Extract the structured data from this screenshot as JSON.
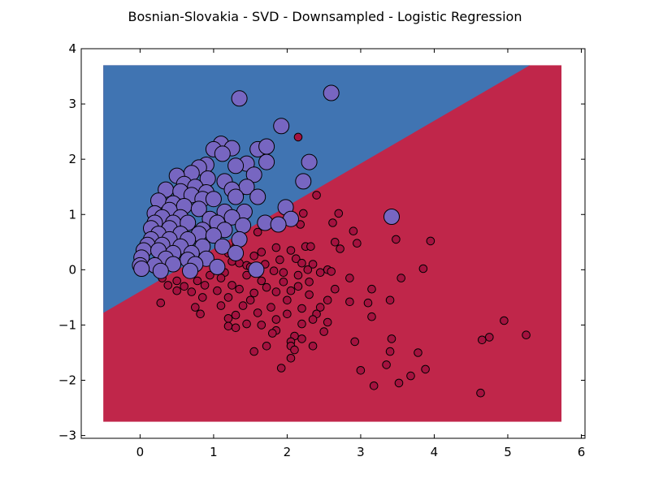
{
  "chart_data": {
    "type": "scatter",
    "title": "Bosnian-Slovakia - SVD - Downsampled - Logistic Regression",
    "xlabel": "",
    "ylabel": "",
    "xlim": [
      -0.8,
      6.05
    ],
    "ylim": [
      -3.05,
      4.0
    ],
    "xticks": [
      0,
      1,
      2,
      3,
      4,
      5,
      6
    ],
    "yticks": [
      -3,
      -2,
      -1,
      0,
      1,
      2,
      3,
      4
    ],
    "tick_labels_x": [
      "0",
      "1",
      "2",
      "3",
      "4",
      "5",
      "6"
    ],
    "tick_labels_y": [
      "−3",
      "−2",
      "−1",
      "0",
      "1",
      "2",
      "3",
      "4"
    ],
    "grid": false,
    "legend": "none",
    "colors": {
      "blue_region": "#4074b2",
      "red_region": "#c0264a",
      "blue_points": "#7766c1",
      "red_points": "#a4123f",
      "edge": "#000000"
    },
    "decision_regions": {
      "x_range": [
        -0.5,
        5.73
      ],
      "y_range": [
        -2.75,
        3.7
      ],
      "boundary": [
        [
          -0.5,
          -0.78
        ],
        [
          5.3,
          3.7
        ]
      ]
    },
    "series": [
      {
        "class": "blue",
        "marker_size": "large",
        "points": [
          [
            2.6,
            3.2
          ],
          [
            1.35,
            3.1
          ],
          [
            1.92,
            2.6
          ],
          [
            1.1,
            2.28
          ],
          [
            1.25,
            2.2
          ],
          [
            1.6,
            2.18
          ],
          [
            1.72,
            2.23
          ],
          [
            1.0,
            2.18
          ],
          [
            1.12,
            2.1
          ],
          [
            2.3,
            1.95
          ],
          [
            1.72,
            1.95
          ],
          [
            1.45,
            1.92
          ],
          [
            1.3,
            1.88
          ],
          [
            0.9,
            1.9
          ],
          [
            0.8,
            1.85
          ],
          [
            0.7,
            1.75
          ],
          [
            0.5,
            1.7
          ],
          [
            1.55,
            1.72
          ],
          [
            0.92,
            1.65
          ],
          [
            1.15,
            1.6
          ],
          [
            2.22,
            1.6
          ],
          [
            0.6,
            1.55
          ],
          [
            0.75,
            1.5
          ],
          [
            1.45,
            1.5
          ],
          [
            0.35,
            1.45
          ],
          [
            0.55,
            1.42
          ],
          [
            1.25,
            1.45
          ],
          [
            0.9,
            1.4
          ],
          [
            0.7,
            1.35
          ],
          [
            1.3,
            1.32
          ],
          [
            1.6,
            1.32
          ],
          [
            0.25,
            1.25
          ],
          [
            0.45,
            1.2
          ],
          [
            0.85,
            1.28
          ],
          [
            1.0,
            1.28
          ],
          [
            0.6,
            1.15
          ],
          [
            1.98,
            1.13
          ],
          [
            0.4,
            1.08
          ],
          [
            0.2,
            1.02
          ],
          [
            0.8,
            1.1
          ],
          [
            1.15,
            1.05
          ],
          [
            1.42,
            1.05
          ],
          [
            3.42,
            0.96
          ],
          [
            0.3,
            0.95
          ],
          [
            0.55,
            0.95
          ],
          [
            0.95,
            0.92
          ],
          [
            1.25,
            0.95
          ],
          [
            2.05,
            0.92
          ],
          [
            0.2,
            0.85
          ],
          [
            0.45,
            0.85
          ],
          [
            0.65,
            0.85
          ],
          [
            1.05,
            0.85
          ],
          [
            1.7,
            0.85
          ],
          [
            1.88,
            0.82
          ],
          [
            0.15,
            0.75
          ],
          [
            0.4,
            0.75
          ],
          [
            0.85,
            0.72
          ],
          [
            1.15,
            0.72
          ],
          [
            1.4,
            0.8
          ],
          [
            0.25,
            0.65
          ],
          [
            0.55,
            0.65
          ],
          [
            0.8,
            0.65
          ],
          [
            1.0,
            0.62
          ],
          [
            0.15,
            0.55
          ],
          [
            0.4,
            0.55
          ],
          [
            0.65,
            0.55
          ],
          [
            1.35,
            0.55
          ],
          [
            0.1,
            0.45
          ],
          [
            0.3,
            0.45
          ],
          [
            0.55,
            0.42
          ],
          [
            0.85,
            0.42
          ],
          [
            1.12,
            0.42
          ],
          [
            0.05,
            0.35
          ],
          [
            0.25,
            0.35
          ],
          [
            0.45,
            0.3
          ],
          [
            0.7,
            0.3
          ],
          [
            1.3,
            0.3
          ],
          [
            0.02,
            0.22
          ],
          [
            0.35,
            0.2
          ],
          [
            0.65,
            0.18
          ],
          [
            0.9,
            0.2
          ],
          [
            0.0,
            0.08
          ],
          [
            0.2,
            0.08
          ],
          [
            0.45,
            0.1
          ],
          [
            0.75,
            0.1
          ],
          [
            1.05,
            0.05
          ],
          [
            0.02,
            0.02
          ],
          [
            0.28,
            -0.02
          ],
          [
            0.68,
            -0.02
          ],
          [
            1.58,
            0.0
          ]
        ]
      },
      {
        "class": "red",
        "marker_size": "small",
        "points": [
          [
            2.15,
            2.4
          ],
          [
            1.38,
            1.42
          ],
          [
            2.4,
            1.35
          ],
          [
            2.22,
            1.02
          ],
          [
            2.7,
            1.02
          ],
          [
            2.18,
            0.82
          ],
          [
            2.62,
            0.85
          ],
          [
            3.48,
            0.55
          ],
          [
            1.6,
            0.68
          ],
          [
            2.9,
            0.7
          ],
          [
            3.95,
            0.52
          ],
          [
            2.65,
            0.5
          ],
          [
            2.95,
            0.48
          ],
          [
            1.3,
            0.42
          ],
          [
            2.25,
            0.42
          ],
          [
            2.32,
            0.42
          ],
          [
            0.65,
            0.45
          ],
          [
            1.85,
            0.4
          ],
          [
            2.72,
            0.38
          ],
          [
            2.05,
            0.35
          ],
          [
            1.2,
            0.3
          ],
          [
            1.65,
            0.32
          ],
          [
            1.55,
            0.25
          ],
          [
            2.12,
            0.2
          ],
          [
            1.9,
            0.18
          ],
          [
            2.2,
            0.12
          ],
          [
            2.35,
            0.1
          ],
          [
            1.25,
            0.15
          ],
          [
            1.35,
            0.12
          ],
          [
            1.45,
            0.08
          ],
          [
            1.7,
            0.1
          ],
          [
            1.5,
            0.05
          ],
          [
            2.28,
            0.0
          ],
          [
            2.55,
            0.0
          ],
          [
            1.82,
            -0.02
          ],
          [
            2.45,
            -0.05
          ],
          [
            3.85,
            0.02
          ],
          [
            1.15,
            -0.05
          ],
          [
            1.95,
            -0.05
          ],
          [
            2.6,
            -0.03
          ],
          [
            0.95,
            -0.1
          ],
          [
            1.45,
            -0.1
          ],
          [
            2.15,
            -0.1
          ],
          [
            2.85,
            -0.15
          ],
          [
            3.55,
            -0.15
          ],
          [
            0.3,
            -0.15
          ],
          [
            0.5,
            -0.2
          ],
          [
            0.78,
            -0.2
          ],
          [
            1.1,
            -0.15
          ],
          [
            1.65,
            -0.2
          ],
          [
            1.95,
            -0.22
          ],
          [
            2.3,
            -0.22
          ],
          [
            0.38,
            -0.28
          ],
          [
            0.6,
            -0.3
          ],
          [
            0.88,
            -0.28
          ],
          [
            1.25,
            -0.28
          ],
          [
            1.72,
            -0.32
          ],
          [
            2.15,
            -0.3
          ],
          [
            3.15,
            -0.35
          ],
          [
            0.5,
            -0.38
          ],
          [
            0.7,
            -0.4
          ],
          [
            1.05,
            -0.38
          ],
          [
            1.35,
            -0.35
          ],
          [
            1.55,
            -0.42
          ],
          [
            1.85,
            -0.4
          ],
          [
            2.05,
            -0.38
          ],
          [
            2.65,
            -0.35
          ],
          [
            2.3,
            -0.45
          ],
          [
            3.4,
            -0.55
          ],
          [
            0.85,
            -0.5
          ],
          [
            1.2,
            -0.5
          ],
          [
            1.5,
            -0.55
          ],
          [
            2.0,
            -0.55
          ],
          [
            2.55,
            -0.55
          ],
          [
            2.85,
            -0.58
          ],
          [
            3.1,
            -0.6
          ],
          [
            0.75,
            -0.68
          ],
          [
            1.1,
            -0.65
          ],
          [
            1.4,
            -0.65
          ],
          [
            1.78,
            -0.68
          ],
          [
            2.2,
            -0.7
          ],
          [
            2.45,
            -0.68
          ],
          [
            0.82,
            -0.8
          ],
          [
            1.3,
            -0.82
          ],
          [
            1.6,
            -0.78
          ],
          [
            2.0,
            -0.8
          ],
          [
            2.4,
            -0.8
          ],
          [
            3.15,
            -0.85
          ],
          [
            1.2,
            -0.88
          ],
          [
            1.85,
            -0.9
          ],
          [
            2.35,
            -0.9
          ],
          [
            1.45,
            -0.98
          ],
          [
            2.2,
            -0.98
          ],
          [
            1.65,
            -1.0
          ],
          [
            2.55,
            -0.95
          ],
          [
            1.2,
            -1.02
          ],
          [
            1.3,
            -1.05
          ],
          [
            1.85,
            -1.1
          ],
          [
            2.5,
            -1.12
          ],
          [
            1.8,
            -1.15
          ],
          [
            2.2,
            -1.25
          ],
          [
            2.1,
            -1.2
          ],
          [
            2.05,
            -1.3
          ],
          [
            3.42,
            -1.25
          ],
          [
            2.92,
            -1.3
          ],
          [
            2.35,
            -1.38
          ],
          [
            2.05,
            -1.38
          ],
          [
            1.72,
            -1.38
          ],
          [
            1.55,
            -1.48
          ],
          [
            3.4,
            -1.48
          ],
          [
            3.78,
            -1.5
          ],
          [
            4.65,
            -1.27
          ],
          [
            4.75,
            -1.22
          ],
          [
            4.95,
            -0.92
          ],
          [
            5.25,
            -1.18
          ],
          [
            3.35,
            -1.72
          ],
          [
            3.88,
            -1.8
          ],
          [
            2.1,
            -1.45
          ],
          [
            1.92,
            -1.78
          ],
          [
            3.0,
            -1.82
          ],
          [
            3.68,
            -1.92
          ],
          [
            3.52,
            -2.05
          ],
          [
            3.18,
            -2.1
          ],
          [
            4.63,
            -2.23
          ],
          [
            2.05,
            -1.6
          ],
          [
            0.28,
            -0.6
          ]
        ]
      }
    ]
  }
}
